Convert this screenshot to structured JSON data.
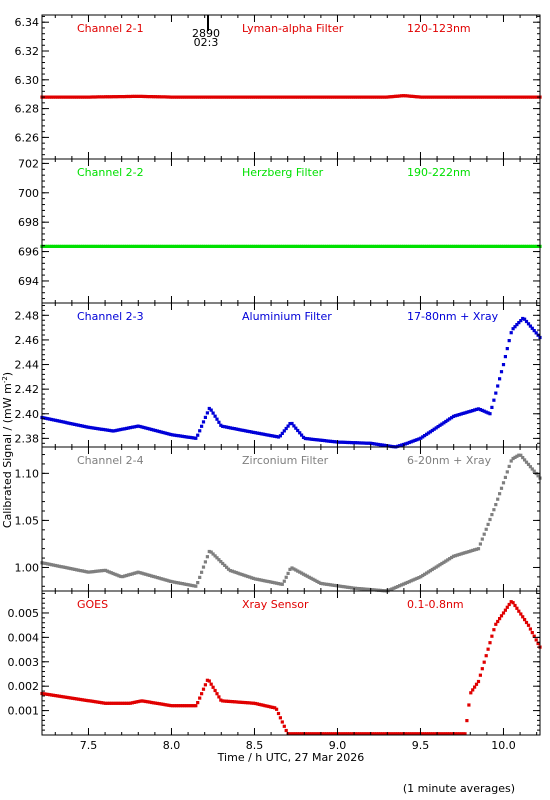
{
  "page": {
    "ylabel": "Calibrated Signal / (mW m",
    "ylabel_sup": "-2",
    "ylabel_end": ")",
    "footnote": "(1 minute averages)"
  },
  "marker": {
    "x": 8.22,
    "lines": [
      "2890",
      "02:3"
    ]
  },
  "chart_data": [
    {
      "type": "scatter",
      "panel": "Channel 2-1",
      "labels": [
        "Channel 2-1",
        "Lyman-alpha Filter",
        "120-123nm"
      ],
      "color": "#e00000",
      "xlim": [
        7.22,
        10.22
      ],
      "ylim": [
        6.245,
        6.345
      ],
      "yticks": [
        6.26,
        6.28,
        6.3,
        6.32,
        6.34
      ],
      "ytick_labels": [
        "6.26",
        "6.28",
        "6.30",
        "6.32",
        "6.34"
      ],
      "xticks": [
        7.5,
        8.0,
        8.5,
        9.0,
        9.5,
        10.0
      ],
      "x_knots": [
        7.22,
        7.5,
        7.8,
        8.0,
        8.5,
        9.0,
        9.3,
        9.4,
        9.5,
        9.8,
        10.22
      ],
      "y_knots": [
        6.288,
        6.288,
        6.2885,
        6.288,
        6.288,
        6.288,
        6.288,
        6.289,
        6.288,
        6.288,
        6.288
      ]
    },
    {
      "type": "scatter",
      "panel": "Channel 2-2",
      "labels": [
        "Channel 2-2",
        "Herzberg Filter",
        "190-222nm"
      ],
      "color": "#00e000",
      "xlim": [
        7.22,
        10.22
      ],
      "ylim": [
        692.5,
        702.3
      ],
      "yticks": [
        694,
        696,
        698,
        700,
        702
      ],
      "ytick_labels": [
        "694",
        "696",
        "698",
        "700",
        "702"
      ],
      "xticks": [
        7.5,
        8.0,
        8.5,
        9.0,
        9.5,
        10.0
      ],
      "x_knots": [
        7.22,
        8.0,
        9.0,
        10.22
      ],
      "y_knots": [
        696.35,
        696.35,
        696.35,
        696.35
      ]
    },
    {
      "type": "scatter",
      "panel": "Channel 2-3",
      "labels": [
        "Channel 2-3",
        "Aluminium Filter",
        "17-80nm + Xray"
      ],
      "color": "#0000d8",
      "xlim": [
        7.22,
        10.22
      ],
      "ylim": [
        2.373,
        2.49
      ],
      "yticks": [
        2.38,
        2.4,
        2.42,
        2.44,
        2.46,
        2.48
      ],
      "ytick_labels": [
        "2.38",
        "2.40",
        "2.42",
        "2.44",
        "2.46",
        "2.48"
      ],
      "xticks": [
        7.5,
        8.0,
        8.5,
        9.0,
        9.5,
        10.0
      ],
      "x_knots": [
        7.22,
        7.5,
        7.65,
        7.8,
        8.0,
        8.15,
        8.23,
        8.3,
        8.45,
        8.65,
        8.72,
        8.8,
        9.0,
        9.2,
        9.35,
        9.42,
        9.5,
        9.7,
        9.85,
        9.92,
        10.0,
        10.05,
        10.12,
        10.22
      ],
      "y_knots": [
        2.397,
        2.389,
        2.386,
        2.39,
        2.383,
        2.38,
        2.405,
        2.39,
        2.386,
        2.381,
        2.393,
        2.38,
        2.377,
        2.376,
        2.373,
        2.376,
        2.38,
        2.398,
        2.404,
        2.4,
        2.44,
        2.468,
        2.478,
        2.462
      ]
    },
    {
      "type": "scatter",
      "panel": "Channel 2-4",
      "labels": [
        "Channel 2-4",
        "Zirconium Filter",
        "6-20nm + Xray"
      ],
      "color": "#7f7f7f",
      "xlim": [
        7.22,
        10.22
      ],
      "ylim": [
        0.975,
        1.128
      ],
      "yticks": [
        1.0,
        1.05,
        1.1
      ],
      "ytick_labels": [
        "1.00",
        "1.05",
        "1.10"
      ],
      "xticks": [
        7.5,
        8.0,
        8.5,
        9.0,
        9.5,
        10.0
      ],
      "x_knots": [
        7.22,
        7.5,
        7.6,
        7.7,
        7.8,
        8.0,
        8.15,
        8.23,
        8.35,
        8.5,
        8.67,
        8.72,
        8.9,
        9.1,
        9.3,
        9.5,
        9.7,
        9.85,
        9.95,
        10.05,
        10.1,
        10.22
      ],
      "y_knots": [
        1.005,
        0.995,
        0.997,
        0.99,
        0.995,
        0.985,
        0.98,
        1.018,
        0.997,
        0.988,
        0.982,
        1.0,
        0.983,
        0.978,
        0.975,
        0.99,
        1.012,
        1.02,
        1.065,
        1.115,
        1.12,
        1.095
      ]
    },
    {
      "type": "scatter",
      "panel": "GOES",
      "labels": [
        "GOES",
        "Xray Sensor",
        "0.1-0.8nm"
      ],
      "color": "#e00000",
      "xlim": [
        7.22,
        10.22
      ],
      "ylim": [
        0.0,
        0.0059
      ],
      "yticks": [
        0.001,
        0.002,
        0.003,
        0.004,
        0.005
      ],
      "ytick_labels": [
        "0.001",
        "0.002",
        "0.003",
        "0.004",
        "0.005"
      ],
      "xticks": [
        7.5,
        8.0,
        8.5,
        9.0,
        9.5,
        10.0
      ],
      "xtick_labels": [
        "7.5",
        "8.0",
        "8.5",
        "9.0",
        "9.5",
        "10.0"
      ],
      "xlabel": "Time / h UTC, 27 Mar 2026",
      "x_knots": [
        7.22,
        7.6,
        7.75,
        7.82,
        8.0,
        8.15,
        8.22,
        8.3,
        8.5,
        8.63,
        8.67,
        8.7,
        9.5,
        9.77,
        9.8,
        9.85,
        9.95,
        10.05,
        10.15,
        10.22
      ],
      "y_knots": [
        0.0017,
        0.0013,
        0.0013,
        0.0014,
        0.0012,
        0.0012,
        0.0023,
        0.0014,
        0.0013,
        0.0011,
        0.0005,
        5e-05,
        5e-05,
        5e-05,
        0.0017,
        0.0022,
        0.0045,
        0.0055,
        0.0045,
        0.0036
      ]
    }
  ]
}
